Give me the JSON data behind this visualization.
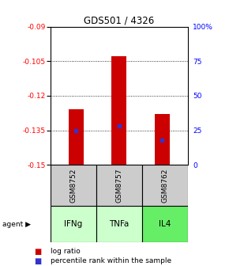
{
  "title": "GDS501 / 4326",
  "bars": [
    {
      "label": "GSM8752",
      "agent": "IFNg",
      "log_ratio": -0.126,
      "percentile": 25
    },
    {
      "label": "GSM8757",
      "agent": "TNFa",
      "log_ratio": -0.103,
      "percentile": 28
    },
    {
      "label": "GSM8762",
      "agent": "IL4",
      "log_ratio": -0.128,
      "percentile": 18
    }
  ],
  "ylim_left": [
    -0.15,
    -0.09
  ],
  "yticks_left": [
    -0.15,
    -0.135,
    -0.12,
    -0.105,
    -0.09
  ],
  "ytick_labels_left": [
    "-0.15",
    "-0.135",
    "-0.12",
    "-0.105",
    "-0.09"
  ],
  "yticks_right": [
    0,
    25,
    50,
    75,
    100
  ],
  "ytick_labels_right": [
    "0",
    "25",
    "50",
    "75",
    "100%"
  ],
  "bar_bottom": -0.15,
  "bar_color": "#cc0000",
  "blue_color": "#3333cc",
  "bar_width": 0.35,
  "agent_colors": {
    "IFNg": "#ccffcc",
    "TNFa": "#ccffcc",
    "IL4": "#66ee66"
  },
  "gsm_bg": "#cccccc",
  "legend_log_ratio": "log ratio",
  "legend_percentile": "percentile rank within the sample",
  "agent_label": "agent",
  "dotted_gridlines": true
}
